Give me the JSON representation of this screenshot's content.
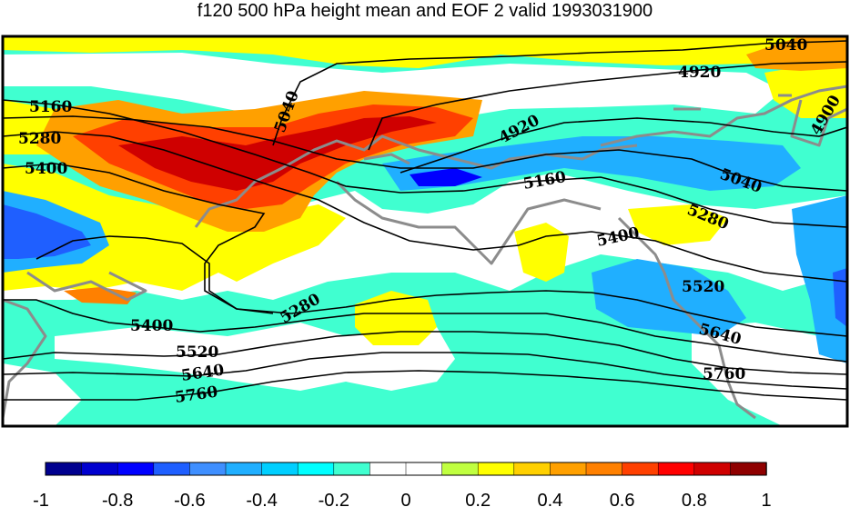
{
  "title": "f120 500 hPa height mean and EOF 2 valid 1993031900",
  "contour_labels": {
    "c5040a": "5040",
    "c4920a": "4920",
    "c5040b": "5040",
    "c4920b": "4920",
    "c4900": "4900",
    "c5160a": "5160",
    "c5280a": "5280",
    "c5400a": "5400",
    "c5160b": "5160",
    "c5040c": "5040",
    "c5280b": "5280",
    "c5400b": "5400",
    "c5520a": "5520",
    "c5280c": "5280",
    "c5400c": "5400",
    "c5520b": "5520",
    "c5640a": "5640",
    "c5760a": "5760",
    "c5640b": "5640",
    "c5760b": "5760"
  },
  "colorbar": {
    "colors": [
      "#00008f",
      "#0000cf",
      "#0000ff",
      "#1f5fff",
      "#3f8fff",
      "#20afff",
      "#00cfff",
      "#00ffff",
      "#40ffd0",
      "#ffffff",
      "#ffffff",
      "#c0ff40",
      "#ffff00",
      "#ffd000",
      "#ffa000",
      "#ff8000",
      "#ff4000",
      "#ff0000",
      "#cf0000",
      "#8f0000"
    ],
    "ticks": [
      "-1",
      "-0.8",
      "-0.6",
      "-0.4",
      "-0.2",
      "0",
      "0.2",
      "0.4",
      "0.6",
      "0.8",
      "1"
    ]
  }
}
